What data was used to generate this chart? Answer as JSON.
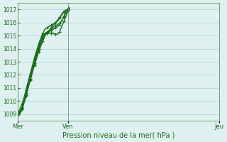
{
  "title": "",
  "xlabel": "Pression niveau de la mer( hPa )",
  "ylabel": "",
  "bg_color": "#dff0f0",
  "grid_color": "#b0d0d0",
  "line_color": "#1a6b1a",
  "marker_color": "#1a6b1a",
  "ylim": [
    1008.5,
    1017.5
  ],
  "yticks": [
    1009,
    1010,
    1011,
    1012,
    1013,
    1014,
    1015,
    1016,
    1017
  ],
  "day_labels": [
    "Mer",
    "Ven",
    "Jeu"
  ],
  "day_positions": [
    0,
    48,
    192
  ],
  "total_points": 240,
  "lines": [
    [
      1009.0,
      1009.1,
      1009.2,
      1009.3,
      1009.5,
      1009.7,
      1010.0,
      1010.3,
      1010.6,
      1011.0,
      1011.3,
      1011.6,
      1011.9,
      1012.2,
      1012.5,
      1012.8,
      1013.1,
      1013.4,
      1013.7,
      1013.9,
      1014.2,
      1014.4,
      1014.6,
      1014.8,
      1015.0,
      1015.1,
      1015.2,
      1015.2,
      1015.2,
      1015.2,
      1015.2,
      1015.2,
      1015.2,
      1015.2,
      1015.2,
      1015.1,
      1015.1,
      1015.1,
      1015.1,
      1015.2,
      1015.3,
      1015.5,
      1015.7,
      1015.9,
      1016.1,
      1016.3,
      1016.5,
      1016.7,
      1016.9,
      1017.1
    ],
    [
      1009.0,
      1009.0,
      1009.1,
      1009.2,
      1009.4,
      1009.6,
      1009.9,
      1010.2,
      1010.5,
      1010.8,
      1011.1,
      1011.4,
      1011.7,
      1012.0,
      1012.3,
      1012.6,
      1012.9,
      1013.2,
      1013.5,
      1013.8,
      1014.0,
      1014.3,
      1014.5,
      1014.7,
      1014.9,
      1015.0,
      1015.1,
      1015.2,
      1015.3,
      1015.3,
      1015.4,
      1015.5,
      1015.6,
      1015.7,
      1015.8,
      1015.9,
      1016.0,
      1016.1,
      1016.2,
      1016.3,
      1016.4,
      1016.5,
      1016.6,
      1016.7,
      1016.8,
      1016.85,
      1016.9,
      1016.95,
      1017.0,
      1017.1
    ],
    [
      1009.0,
      1008.85,
      1009.0,
      1009.15,
      1009.35,
      1009.6,
      1009.85,
      1010.1,
      1010.4,
      1010.7,
      1011.0,
      1011.3,
      1011.6,
      1011.9,
      1012.2,
      1012.5,
      1012.75,
      1013.0,
      1013.25,
      1013.5,
      1013.75,
      1014.0,
      1014.2,
      1014.4,
      1014.6,
      1014.8,
      1015.0,
      1015.1,
      1015.2,
      1015.3,
      1015.4,
      1015.5,
      1015.55,
      1015.6,
      1015.65,
      1015.7,
      1015.75,
      1015.8,
      1015.85,
      1015.9,
      1015.95,
      1016.05,
      1016.15,
      1016.3,
      1016.45,
      1016.6,
      1016.7,
      1016.8,
      1016.9,
      1017.05
    ],
    [
      1009.0,
      1009.05,
      1009.1,
      1009.25,
      1009.45,
      1009.65,
      1009.9,
      1010.15,
      1010.45,
      1010.75,
      1011.05,
      1011.35,
      1011.65,
      1011.95,
      1012.25,
      1012.55,
      1012.8,
      1013.1,
      1013.4,
      1013.7,
      1013.9,
      1014.15,
      1014.4,
      1014.6,
      1014.8,
      1014.95,
      1015.1,
      1015.15,
      1015.2,
      1015.25,
      1015.3,
      1015.35,
      1015.4,
      1015.45,
      1015.5,
      1015.55,
      1015.6,
      1015.65,
      1015.7,
      1015.75,
      1015.85,
      1016.0,
      1016.15,
      1016.3,
      1016.5,
      1016.65,
      1016.75,
      1016.85,
      1016.95,
      1017.1
    ],
    [
      1009.0,
      1009.2,
      1009.35,
      1009.55,
      1009.75,
      1010.0,
      1010.25,
      1010.55,
      1010.85,
      1011.2,
      1011.5,
      1011.8,
      1012.1,
      1012.4,
      1012.7,
      1013.0,
      1013.3,
      1013.6,
      1013.85,
      1014.1,
      1014.35,
      1014.6,
      1014.8,
      1015.0,
      1015.2,
      1015.35,
      1015.5,
      1015.55,
      1015.6,
      1015.65,
      1015.7,
      1015.75,
      1015.8,
      1015.85,
      1015.9,
      1015.95,
      1016.0,
      1016.05,
      1016.1,
      1016.2,
      1016.35,
      1016.5,
      1016.65,
      1016.75,
      1016.85,
      1016.9,
      1016.95,
      1017.0,
      1017.05,
      1017.15
    ]
  ],
  "marker_every": 4,
  "marker_size": 3,
  "line_width": 1.0
}
